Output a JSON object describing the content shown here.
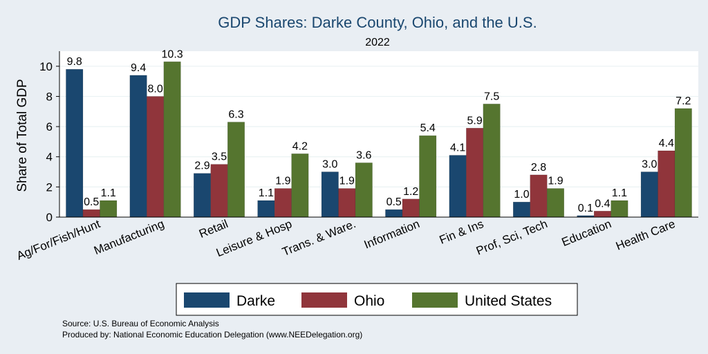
{
  "chart_data": {
    "type": "bar",
    "title": "GDP Shares: Darke County, Ohio, and the U.S.",
    "subtitle": "2022",
    "xlabel": "",
    "ylabel": "Share of Total GDP",
    "ylim": [
      0,
      11
    ],
    "yticks": [
      0,
      2,
      4,
      6,
      8,
      10
    ],
    "grid": true,
    "legend_position": "bottom",
    "categories": [
      "Ag/For/Fish/Hunt",
      "Manufacturing",
      "Retail",
      "Leisure & Hosp",
      "Trans. & Ware.",
      "Information",
      "Fin & Ins",
      "Prof, Sci, Tech",
      "Education",
      "Health Care"
    ],
    "series": [
      {
        "name": "Darke",
        "color": "#1a476f",
        "values": [
          9.8,
          9.4,
          2.9,
          1.1,
          3.0,
          0.5,
          4.1,
          1.0,
          0.1,
          3.0
        ],
        "labels": [
          "9.8",
          "9.4",
          "2.9",
          "1.1",
          "3.0",
          "0.5",
          "4.1",
          "1.0",
          "0.1",
          "3.0"
        ]
      },
      {
        "name": "Ohio",
        "color": "#90353b",
        "values": [
          0.5,
          8.0,
          3.5,
          1.9,
          1.9,
          1.2,
          5.9,
          2.8,
          0.4,
          4.4
        ],
        "labels": [
          "0.5",
          "8.0",
          "3.5",
          "1.9",
          "1.9",
          "1.2",
          "5.9",
          "2.8",
          "0.4",
          "4.4"
        ]
      },
      {
        "name": "United States",
        "color": "#55752f",
        "values": [
          1.1,
          10.3,
          6.3,
          4.2,
          3.6,
          5.4,
          7.5,
          1.9,
          1.1,
          7.2
        ],
        "labels": [
          "1.1",
          "10.3",
          "6.3",
          "4.2",
          "3.6",
          "5.4",
          "7.5",
          "1.9",
          "1.1",
          "7.2"
        ]
      }
    ]
  },
  "notes": {
    "source": "Source: U.S. Bureau of Economic Analysis",
    "produced_by": "Produced by: National Economic Education Delegation (www.NEEDelegation.org)"
  }
}
